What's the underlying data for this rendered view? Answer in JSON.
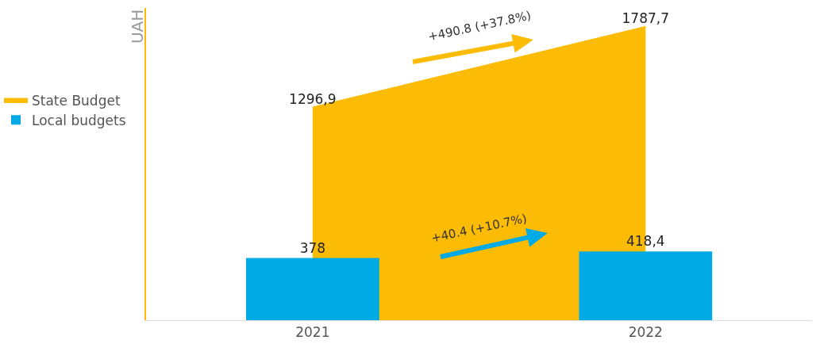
{
  "chart_data": {
    "type": "bar",
    "ylabel": "UAH",
    "categories": [
      "2021",
      "2022"
    ],
    "series": [
      {
        "name": "State Budget",
        "type": "area",
        "color": "#fcbb05",
        "values": [
          1296.9,
          1787.7
        ],
        "value_labels": [
          "1296,9",
          "1787,7"
        ]
      },
      {
        "name": "Local budgets",
        "color": "#00aae4",
        "values": [
          378,
          418.4
        ],
        "value_labels": [
          "378",
          "418,4"
        ]
      }
    ],
    "annotations": [
      "+490.8 (+37.8%)",
      "+40.4 (+10.7%)"
    ],
    "ylim": [
      0,
      1900
    ],
    "legend": "left",
    "grid": false
  }
}
